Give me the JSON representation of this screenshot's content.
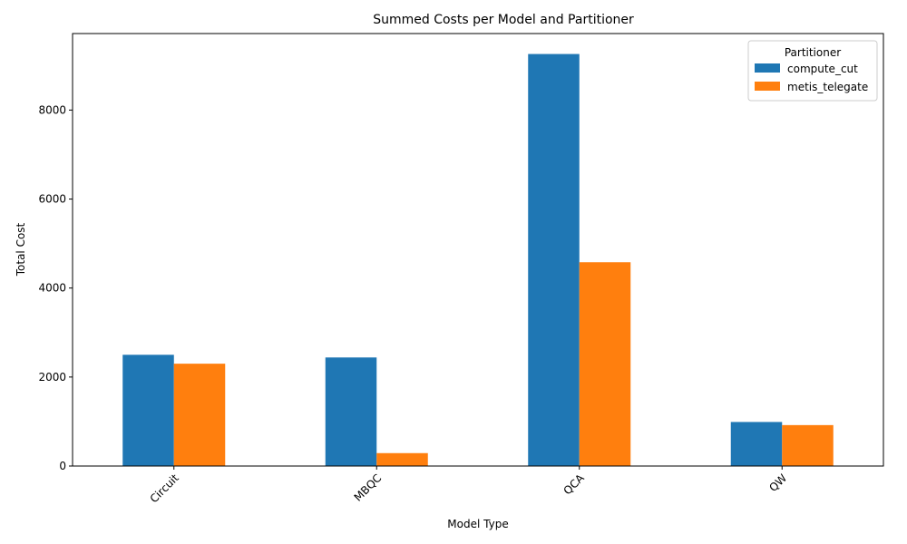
{
  "chart_data": {
    "type": "bar",
    "title": "Summed Costs per Model and Partitioner",
    "xlabel": "Model Type",
    "ylabel": "Total Cost",
    "categories": [
      "Circuit",
      "MBQC",
      "QCA",
      "QW"
    ],
    "series": [
      {
        "name": "compute_cut",
        "color": "#1f77b4",
        "values": [
          2500,
          2440,
          9260,
          990
        ]
      },
      {
        "name": "metis_telegate",
        "color": "#ff7f0e",
        "values": [
          2300,
          290,
          4580,
          920
        ]
      }
    ],
    "ylim": [
      0,
      9720
    ],
    "yticks": [
      0,
      2000,
      4000,
      6000,
      8000
    ],
    "ytick_labels": [
      "0",
      "2000",
      "4000",
      "6000",
      "8000"
    ],
    "legend_title": "Partitioner",
    "legend_position": "top-right",
    "grid": false
  }
}
